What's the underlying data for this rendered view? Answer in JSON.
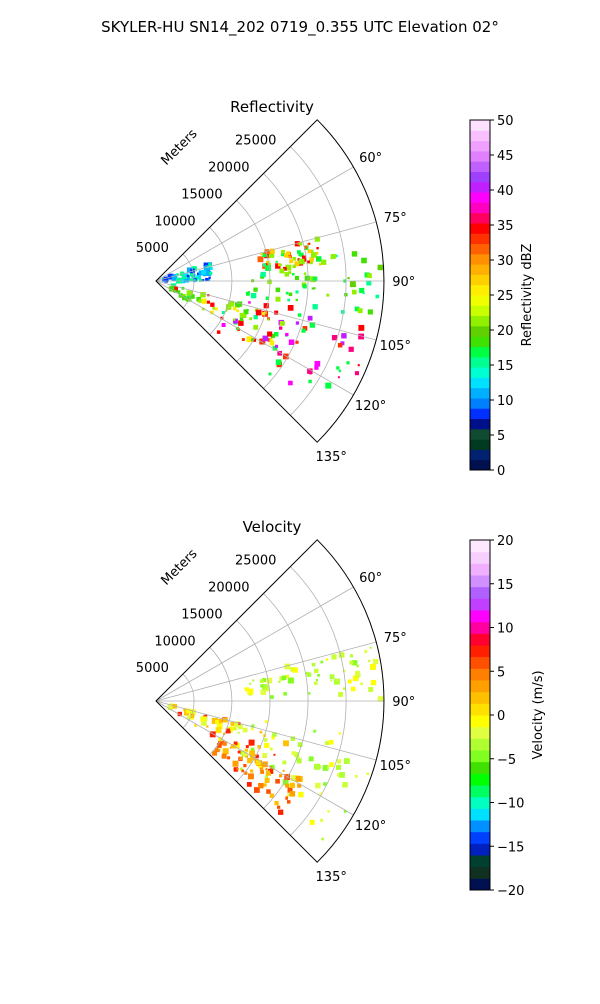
{
  "figure": {
    "title": "SKYLER-HU  SN14_202  0719_0.355 UTC Elevation 02°"
  },
  "chart_data": [
    {
      "type": "heatmap",
      "projection": "polar-sector",
      "title": "Reflectivity",
      "radial_label": "Meters",
      "radial_ticks": [
        "5000",
        "10000",
        "15000",
        "20000",
        "25000"
      ],
      "radial_range": [
        0,
        30000
      ],
      "angle_ticks": [
        "60°",
        "75°",
        "90°",
        "105°",
        "120°",
        "135°"
      ],
      "angle_range": [
        45,
        135
      ],
      "grid": true,
      "colorbar": {
        "label": "Reflectivity dBZ",
        "range": [
          0,
          50
        ],
        "ticks": [
          "0",
          "5",
          "10",
          "15",
          "20",
          "25",
          "30",
          "35",
          "40",
          "45",
          "50"
        ]
      },
      "echo_regions": [
        {
          "az": [
            100,
            130
          ],
          "r": [
            10000,
            30000
          ],
          "level": "high"
        },
        {
          "az": [
            75,
            85
          ],
          "r": [
            14000,
            22000
          ],
          "level": "medium-high"
        },
        {
          "az": [
            80,
            100
          ],
          "r": [
            12000,
            30000
          ],
          "level": "medium"
        },
        {
          "az": [
            105,
            122
          ],
          "r": [
            2000,
            18000
          ],
          "level": "low-medium"
        },
        {
          "az": [
            72,
            90
          ],
          "r": [
            1000,
            8000
          ],
          "level": "low"
        }
      ]
    },
    {
      "type": "heatmap",
      "projection": "polar-sector",
      "title": "Velocity",
      "radial_label": "Meters",
      "radial_ticks": [
        "5000",
        "10000",
        "15000",
        "20000",
        "25000"
      ],
      "radial_range": [
        0,
        30000
      ],
      "angle_ticks": [
        "60°",
        "75°",
        "90°",
        "105°",
        "120°",
        "135°"
      ],
      "angle_range": [
        45,
        135
      ],
      "grid": true,
      "colorbar": {
        "label": "Velocity (m/s)",
        "range": [
          -20,
          20
        ],
        "ticks": [
          "−20",
          "−15",
          "−10",
          "−5",
          "0",
          "5",
          "10",
          "15",
          "20"
        ]
      },
      "echo_regions": [
        {
          "az": [
            100,
            130
          ],
          "r": [
            10000,
            30000
          ],
          "level": "slightly-negative"
        },
        {
          "az": [
            118,
            132
          ],
          "r": [
            10000,
            22000
          ],
          "level": "positive"
        },
        {
          "az": [
            75,
            90
          ],
          "r": [
            12000,
            30000
          ],
          "level": "slightly-negative"
        },
        {
          "az": [
            105,
            122
          ],
          "r": [
            2000,
            18000
          ],
          "level": "near-zero"
        }
      ]
    }
  ]
}
